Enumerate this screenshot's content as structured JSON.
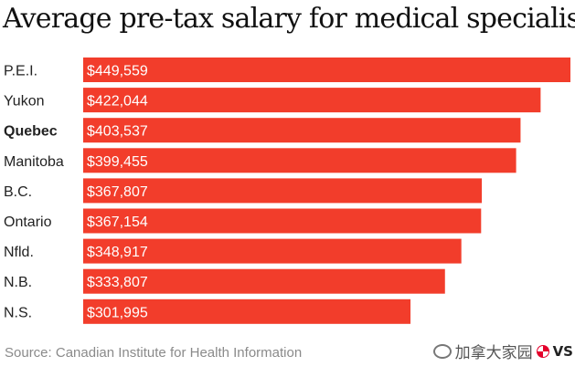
{
  "chart_data": {
    "type": "bar",
    "orientation": "horizontal",
    "title": "Average pre-tax salary for medical specialists",
    "categories": [
      "P.E.I.",
      "Yukon",
      "Quebec",
      "Manitoba",
      "B.C.",
      "Ontario",
      "Nfld.",
      "N.B.",
      "N.S."
    ],
    "highlight_category": "Quebec",
    "values": [
      449559,
      422044,
      403537,
      399455,
      367807,
      367154,
      348917,
      333807,
      301995
    ],
    "value_labels": [
      "$449,559",
      "$422,044",
      "$403,537",
      "$399,455",
      "$367,807",
      "$367,154",
      "$348,917",
      "$333,807",
      "$301,995"
    ],
    "xlim": [
      0,
      449559
    ],
    "bar_color": "#f23d2b",
    "label_color": "#ffffff",
    "grid": false,
    "legend": "none",
    "source": "Source: Canadian Institute for Health Information"
  },
  "watermark": {
    "text": "加拿大家园",
    "suffix": "VS"
  }
}
